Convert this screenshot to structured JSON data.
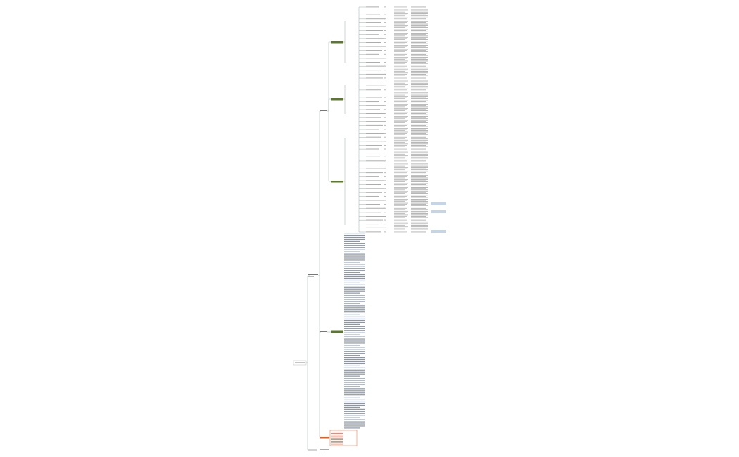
{
  "mind_map": {
    "root_children": 2,
    "level2_children": 4,
    "detail_rows": 58,
    "text_block_lines": 95,
    "orange_box_lines": 9,
    "blue_notes": 3
  }
}
